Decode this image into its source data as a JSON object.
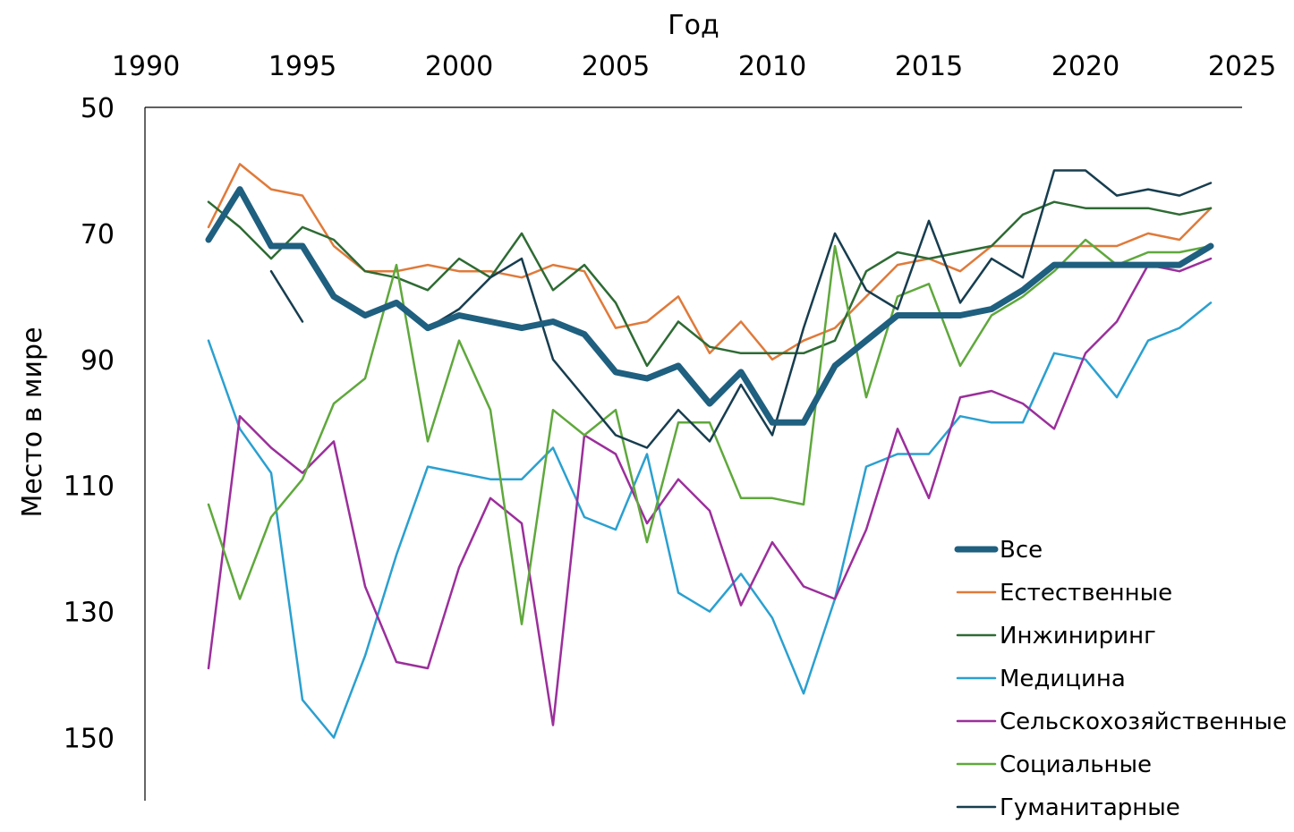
{
  "chart_data": {
    "type": "line",
    "xlabel": "Год",
    "ylabel": "Место в мире",
    "xlim": [
      1990,
      2025
    ],
    "ylim": [
      50,
      160
    ],
    "y_reversed": true,
    "x_axis_position": "top",
    "grid": false,
    "legend_position": "bottom-right",
    "x_ticks": [
      1990,
      1995,
      2000,
      2005,
      2010,
      2015,
      2020,
      2025
    ],
    "y_ticks": [
      50,
      70,
      90,
      110,
      130,
      150
    ],
    "x": [
      1992,
      1993,
      1994,
      1995,
      1996,
      1997,
      1998,
      1999,
      2000,
      2001,
      2002,
      2003,
      2004,
      2005,
      2006,
      2007,
      2008,
      2009,
      2010,
      2011,
      2012,
      2013,
      2014,
      2015,
      2016,
      2017,
      2018,
      2019,
      2020,
      2021,
      2022,
      2023,
      2024
    ],
    "series": [
      {
        "name": "Все",
        "color": "#1f5f7f",
        "width": 7,
        "values": [
          71,
          63,
          72,
          72,
          80,
          83,
          81,
          85,
          83,
          84,
          85,
          84,
          86,
          92,
          93,
          91,
          97,
          92,
          100,
          100,
          91,
          87,
          83,
          83,
          83,
          82,
          79,
          75,
          75,
          75,
          75,
          75,
          72
        ]
      },
      {
        "name": "Естественные",
        "color": "#e07a3a",
        "width": 2.5,
        "values": [
          69,
          59,
          63,
          64,
          72,
          76,
          76,
          75,
          76,
          76,
          77,
          75,
          76,
          85,
          84,
          80,
          89,
          84,
          90,
          87,
          85,
          80,
          75,
          74,
          76,
          72,
          72,
          72,
          72,
          72,
          70,
          71,
          66
        ]
      },
      {
        "name": "Инжиниринг",
        "color": "#2e6b34",
        "width": 2.5,
        "values": [
          65,
          69,
          74,
          69,
          71,
          76,
          77,
          79,
          74,
          77,
          70,
          79,
          75,
          81,
          91,
          84,
          88,
          89,
          89,
          89,
          87,
          76,
          73,
          74,
          73,
          72,
          67,
          65,
          66,
          66,
          66,
          67,
          66
        ]
      },
      {
        "name": "Медицина",
        "color": "#2aa0d0",
        "width": 2.5,
        "values": [
          87,
          101,
          108,
          144,
          150,
          137,
          121,
          107,
          108,
          109,
          109,
          104,
          115,
          117,
          105,
          127,
          130,
          124,
          131,
          143,
          128,
          107,
          105,
          105,
          99,
          100,
          100,
          89,
          90,
          96,
          87,
          85,
          81
        ]
      },
      {
        "name": "Сельскохозяйственные",
        "color": "#9b2f9b",
        "width": 2.5,
        "values": [
          139,
          99,
          104,
          108,
          103,
          126,
          138,
          139,
          123,
          112,
          116,
          148,
          102,
          105,
          116,
          109,
          114,
          129,
          119,
          126,
          128,
          117,
          101,
          112,
          96,
          95,
          97,
          101,
          89,
          84,
          75,
          76,
          74
        ]
      },
      {
        "name": "Социальные",
        "color": "#5fa83c",
        "width": 2.5,
        "values": [
          113,
          128,
          115,
          109,
          97,
          93,
          75,
          103,
          87,
          98,
          132,
          98,
          102,
          98,
          119,
          100,
          100,
          112,
          112,
          113,
          72,
          96,
          80,
          78,
          91,
          83,
          80,
          76,
          71,
          75,
          73,
          73,
          72
        ]
      },
      {
        "name": "Гуманитарные",
        "color": "#173d4f",
        "width": 2.5,
        "values": [
          null,
          null,
          76,
          84,
          null,
          null,
          null,
          85,
          82,
          77,
          74,
          90,
          96,
          102,
          104,
          98,
          103,
          94,
          102,
          85,
          70,
          79,
          82,
          68,
          81,
          74,
          77,
          60,
          60,
          64,
          63,
          64,
          62
        ]
      }
    ]
  }
}
